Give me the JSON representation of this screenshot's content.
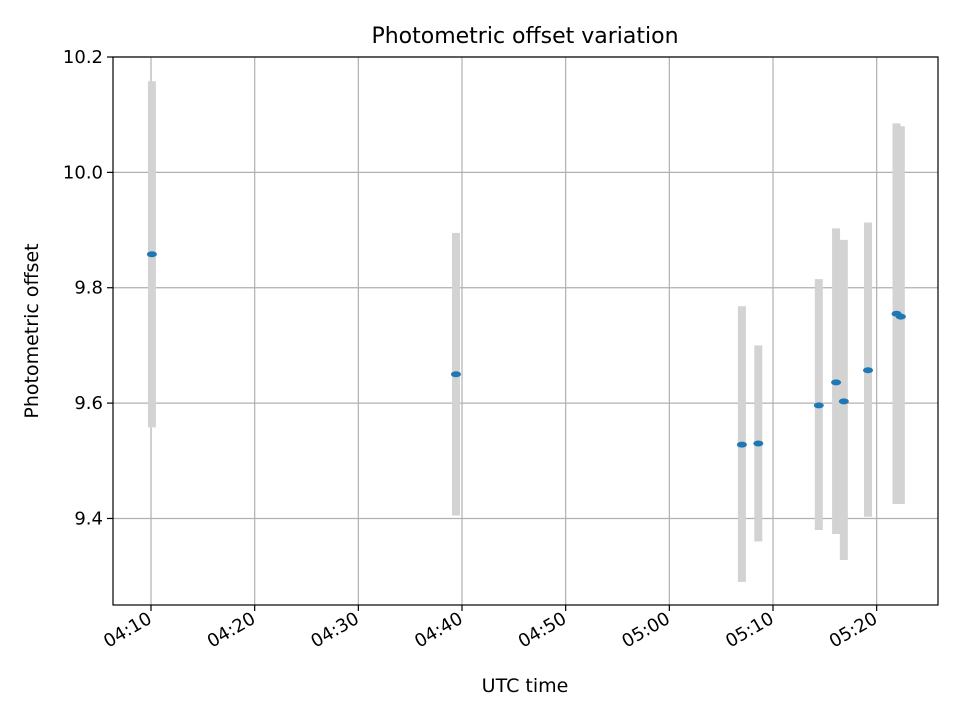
{
  "chart_data": {
    "type": "scatter",
    "title": "Photometric offset variation",
    "xlabel": "UTC time",
    "ylabel": "Photometric offset",
    "xlim": [
      "04:06:20",
      "05:25:55"
    ],
    "ylim": [
      9.25,
      10.2
    ],
    "x_ticks": [
      "04:10",
      "04:20",
      "04:30",
      "04:40",
      "04:50",
      "05:00",
      "05:10",
      "05:20"
    ],
    "y_ticks": [
      9.4,
      9.6,
      9.8,
      10.0,
      10.2
    ],
    "y_tick_labels": [
      "9.4",
      "9.6",
      "9.8",
      "10.0",
      "10.2"
    ],
    "grid": true,
    "series": [
      {
        "points": [
          {
            "time": "04:10:05",
            "value": 9.858,
            "low": 9.558,
            "high": 10.158
          },
          {
            "time": "04:39:25",
            "value": 9.65,
            "low": 9.405,
            "high": 9.895
          },
          {
            "time": "05:07:00",
            "value": 9.528,
            "low": 9.29,
            "high": 9.768
          },
          {
            "time": "05:08:35",
            "value": 9.53,
            "low": 9.36,
            "high": 9.7
          },
          {
            "time": "05:14:25",
            "value": 9.596,
            "low": 9.38,
            "high": 9.815
          },
          {
            "time": "05:16:05",
            "value": 9.636,
            "low": 9.373,
            "high": 9.903
          },
          {
            "time": "05:16:50",
            "value": 9.603,
            "low": 9.328,
            "high": 9.883
          },
          {
            "time": "05:19:10",
            "value": 9.657,
            "low": 9.403,
            "high": 9.913
          },
          {
            "time": "05:21:55",
            "value": 9.755,
            "low": 9.425,
            "high": 10.085
          },
          {
            "time": "05:22:20",
            "value": 9.75,
            "low": 9.425,
            "high": 10.08
          }
        ]
      }
    ],
    "colors": {
      "marker": "#1f77b4",
      "errorbar": "#d3d3d3",
      "grid": "#b0b0b0",
      "axes": "#000000"
    }
  }
}
